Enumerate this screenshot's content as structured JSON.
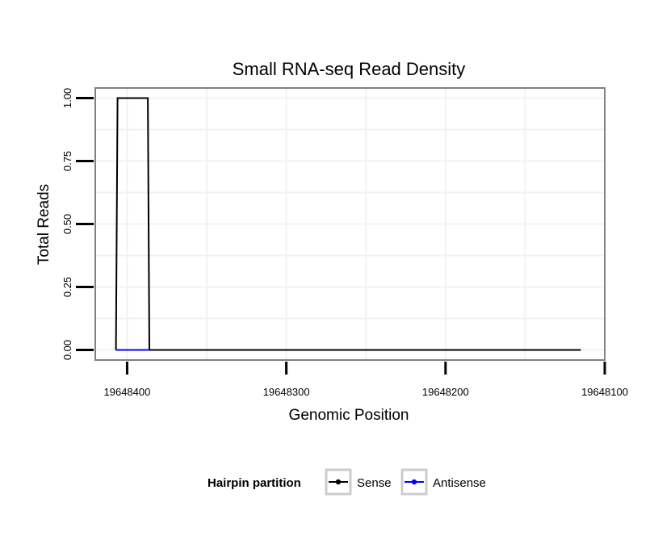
{
  "chart_data": {
    "type": "line",
    "title": "Small RNA-seq Read Density",
    "xlabel": "Genomic Position",
    "ylabel": "Total Reads",
    "x_reversed": true,
    "xlim": [
      19648420,
      19648100
    ],
    "ylim": [
      -0.04,
      1.04
    ],
    "x_ticks": [
      19648400,
      19648300,
      19648200,
      19648100
    ],
    "x_tick_labels": [
      "19648400",
      "19648300",
      "19648200",
      "19648100"
    ],
    "y_ticks": [
      0,
      0.25,
      0.5,
      0.75,
      1.0
    ],
    "y_tick_labels": [
      "0.00",
      "0.25",
      "0.50",
      "0.75",
      "1.00"
    ],
    "grid": true,
    "legend": {
      "title": "Hairpin partition",
      "placement": "bottom"
    },
    "series": [
      {
        "name": "Sense",
        "color": "#000000",
        "x": [
          19648407,
          19648406,
          19648387,
          19648386,
          19648115
        ],
        "y": [
          0,
          1,
          1,
          0,
          0
        ]
      },
      {
        "name": "Antisense",
        "color": "#0000ff",
        "x": [
          19648407,
          19648386
        ],
        "y": [
          0,
          0
        ]
      }
    ]
  }
}
